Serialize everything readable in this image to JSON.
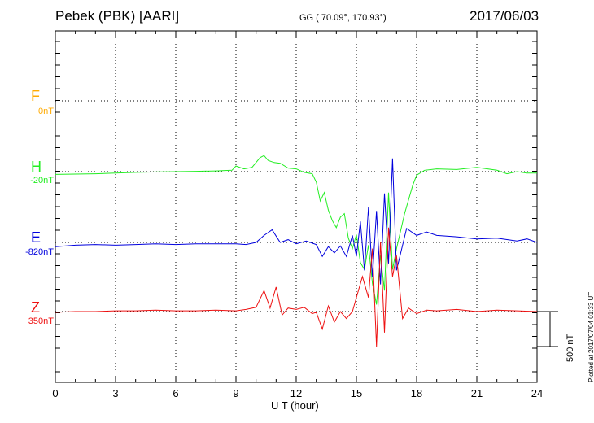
{
  "header": {
    "station": "Pebek (PBK)  [AARI]",
    "coords": "GG ( 70.09°, 170.93°)",
    "date": "2017/06/03"
  },
  "scale_label": "500 nT",
  "plotted_note": "Plotted at 2017/07/04 01:33 UT",
  "chart_data": {
    "type": "line",
    "title": "Pebek (PBK)  [AARI]",
    "xlabel": "U T (hour)",
    "ylabel": "",
    "xlim": [
      0,
      24
    ],
    "xticks": [
      "0",
      "3",
      "6",
      "9",
      "12",
      "15",
      "18",
      "21",
      "24"
    ],
    "grid": true,
    "scale_bar_nT": 500,
    "series": [
      {
        "name": "F",
        "baseline_label": "0nT",
        "color": "#ffaa00",
        "x": [],
        "values": []
      },
      {
        "name": "H",
        "baseline_label": "-20nT",
        "color": "#22ee22",
        "x": [
          0,
          1,
          2,
          3,
          4,
          5,
          6,
          7,
          8,
          8.8,
          9,
          9.4,
          9.8,
          10.2,
          10.4,
          10.6,
          10.9,
          11.2,
          11.6,
          12,
          12.4,
          12.8,
          13,
          13.2,
          13.4,
          13.6,
          13.8,
          14,
          14.2,
          14.4,
          14.6,
          14.8,
          15,
          15.2,
          15.4,
          15.6,
          15.8,
          16,
          16.2,
          16.4,
          16.6,
          16.8,
          17,
          17.4,
          17.8,
          18,
          18.4,
          19,
          20,
          21,
          22,
          22.5,
          23,
          23.5,
          24
        ],
        "values": [
          -40,
          -35,
          -30,
          -20,
          -10,
          -5,
          0,
          5,
          10,
          20,
          80,
          40,
          60,
          200,
          230,
          160,
          130,
          120,
          50,
          40,
          -10,
          -30,
          -150,
          -420,
          -300,
          -550,
          -700,
          -800,
          -650,
          -600,
          -950,
          -1100,
          -900,
          -1300,
          -1400,
          -1050,
          -1600,
          -1900,
          -1200,
          -1700,
          -300,
          -1400,
          -1100,
          -600,
          -200,
          -50,
          20,
          40,
          30,
          60,
          20,
          -30,
          0,
          -20,
          -20
        ]
      },
      {
        "name": "E",
        "baseline_label": "-820nT",
        "color": "#0000dd",
        "x": [
          0,
          1,
          2,
          3,
          4,
          5,
          6,
          7,
          8,
          9,
          9.5,
          10,
          10.4,
          10.8,
          11.2,
          11.6,
          12,
          12.5,
          13,
          13.3,
          13.6,
          13.9,
          14.2,
          14.5,
          14.8,
          15,
          15.2,
          15.4,
          15.6,
          15.8,
          16,
          16.2,
          16.4,
          16.6,
          16.8,
          17,
          17.5,
          18,
          18.5,
          19,
          20,
          21,
          22,
          23,
          23.5,
          24
        ],
        "values": [
          -60,
          -40,
          -30,
          -40,
          -30,
          -20,
          -30,
          -20,
          -20,
          -20,
          -30,
          0,
          100,
          180,
          0,
          40,
          -20,
          20,
          -30,
          -200,
          -60,
          -150,
          -50,
          -200,
          100,
          -200,
          300,
          -400,
          500,
          -500,
          450,
          -600,
          700,
          -300,
          1200,
          -400,
          200,
          100,
          150,
          100,
          80,
          50,
          60,
          20,
          50,
          0
        ]
      },
      {
        "name": "Z",
        "baseline_label": "350nT",
        "color": "#ee1111",
        "x": [
          0,
          1,
          2,
          3,
          4,
          5,
          6,
          7,
          8,
          9,
          9.5,
          10,
          10.4,
          10.7,
          11,
          11.3,
          11.6,
          12,
          12.4,
          12.8,
          13,
          13.3,
          13.6,
          13.9,
          14.2,
          14.5,
          14.8,
          15,
          15.3,
          15.6,
          15.8,
          16,
          16.2,
          16.4,
          16.6,
          16.8,
          17,
          17.3,
          17.6,
          18,
          18.5,
          19,
          20,
          21,
          22,
          23,
          24
        ],
        "values": [
          -10,
          0,
          0,
          10,
          10,
          20,
          10,
          10,
          20,
          10,
          30,
          60,
          300,
          50,
          350,
          -50,
          50,
          30,
          60,
          -30,
          -10,
          -250,
          80,
          -150,
          0,
          -100,
          0,
          200,
          500,
          200,
          900,
          -500,
          1000,
          -300,
          1200,
          500,
          800,
          -100,
          50,
          -30,
          20,
          10,
          30,
          0,
          20,
          10,
          0
        ]
      }
    ]
  }
}
